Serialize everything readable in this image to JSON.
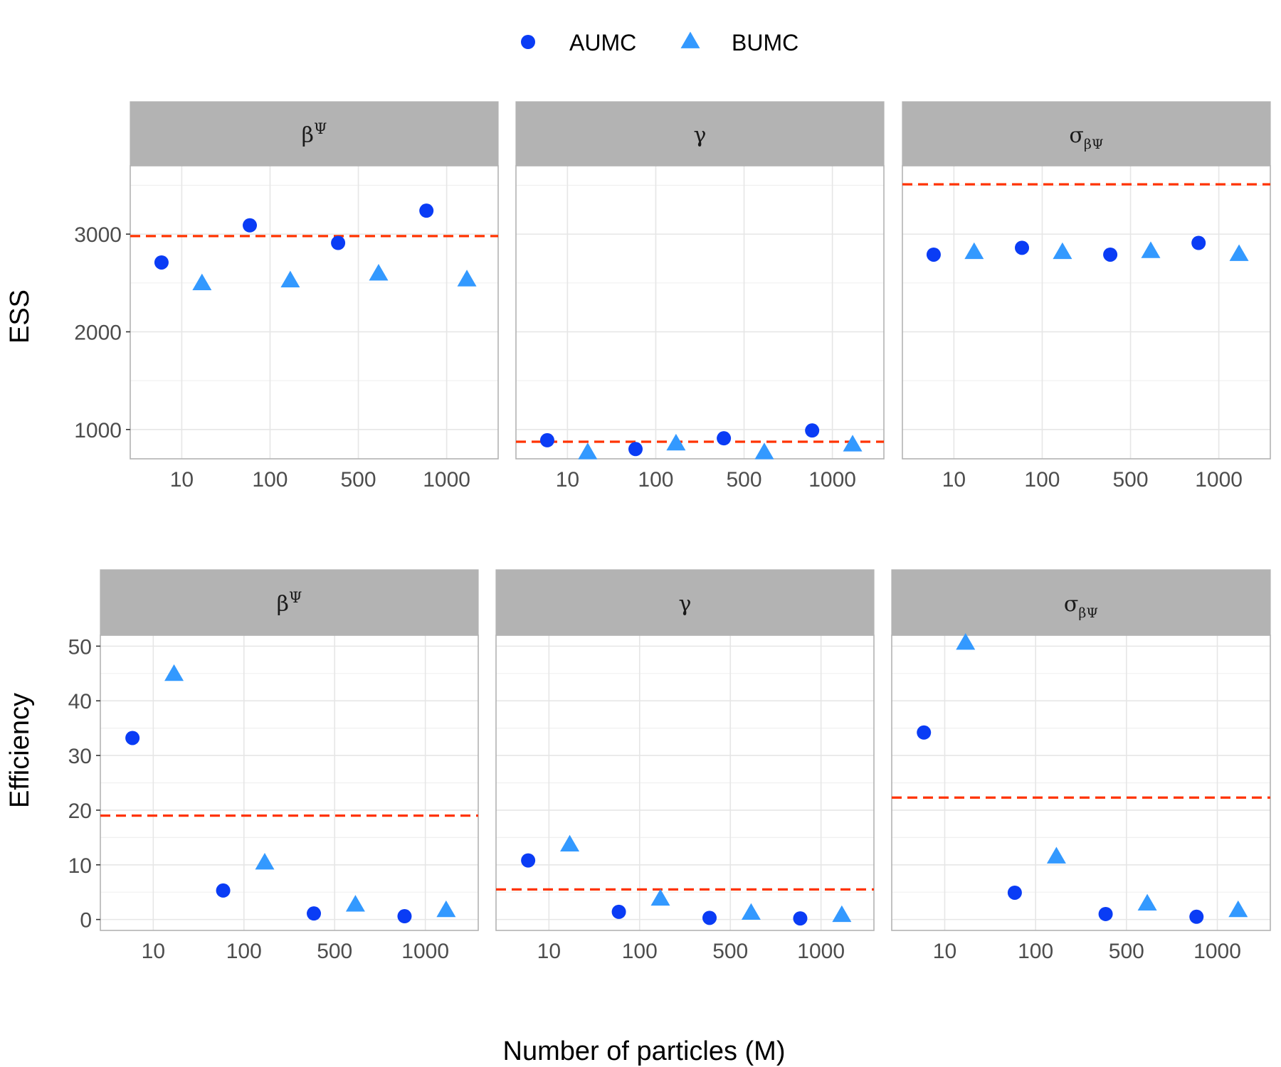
{
  "legend": [
    {
      "label": "AUMC",
      "shape": "circle",
      "color": "#0a3cf5"
    },
    {
      "label": "BUMC",
      "shape": "triangle",
      "color": "#3399ff"
    }
  ],
  "colors": {
    "reference_line": "#ff3300",
    "strip_bg": "#b3b3b3",
    "grid": "#e6e6e6",
    "panel_border": "#b3b3b3"
  },
  "axis_titles": {
    "x": "Number of particles (M)"
  },
  "chart_data": [
    {
      "type": "scatter",
      "row_label": "ESS",
      "categories": [
        "10",
        "100",
        "500",
        "1000"
      ],
      "ylim": [
        700,
        3700
      ],
      "yticks": [
        1000,
        2000,
        3000
      ],
      "panels": [
        {
          "strip": {
            "base": "β",
            "sup": "Ψ",
            "sub": ""
          },
          "series": [
            {
              "name": "AUMC",
              "values": [
                2710,
                3090,
                2910,
                3240
              ]
            },
            {
              "name": "BUMC",
              "values": [
                2490,
                2520,
                2590,
                2530
              ]
            }
          ],
          "reference": 2980
        },
        {
          "strip": {
            "base": "γ",
            "sup": "",
            "sub": ""
          },
          "series": [
            {
              "name": "AUMC",
              "values": [
                890,
                800,
                910,
                990
              ]
            },
            {
              "name": "BUMC",
              "values": [
                760,
                850,
                760,
                840
              ]
            }
          ],
          "reference": 875
        },
        {
          "strip": {
            "base": "σ",
            "sup": "",
            "sub": "βΨ"
          },
          "series": [
            {
              "name": "AUMC",
              "values": [
                2790,
                2860,
                2790,
                2910
              ]
            },
            {
              "name": "BUMC",
              "values": [
                2810,
                2810,
                2820,
                2790
              ]
            }
          ],
          "reference": 3510
        }
      ]
    },
    {
      "type": "scatter",
      "row_label": "Efficiency",
      "categories": [
        "10",
        "100",
        "500",
        "1000"
      ],
      "ylim": [
        -2,
        52
      ],
      "yticks": [
        0,
        10,
        20,
        30,
        40,
        50
      ],
      "panels": [
        {
          "strip": {
            "base": "β",
            "sup": "Ψ",
            "sub": ""
          },
          "series": [
            {
              "name": "AUMC",
              "values": [
                33.2,
                5.3,
                1.1,
                0.6
              ]
            },
            {
              "name": "BUMC",
              "values": [
                44.8,
                10.3,
                2.6,
                1.6
              ]
            }
          ],
          "reference": 19
        },
        {
          "strip": {
            "base": "γ",
            "sup": "",
            "sub": ""
          },
          "series": [
            {
              "name": "AUMC",
              "values": [
                10.8,
                1.4,
                0.3,
                0.2
              ]
            },
            {
              "name": "BUMC",
              "values": [
                13.6,
                3.7,
                1.1,
                0.7
              ]
            }
          ],
          "reference": 5.5
        },
        {
          "strip": {
            "base": "σ",
            "sup": "",
            "sub": "βΨ"
          },
          "series": [
            {
              "name": "AUMC",
              "values": [
                34.2,
                4.9,
                1.0,
                0.5
              ]
            },
            {
              "name": "BUMC",
              "values": [
                50.5,
                11.4,
                2.8,
                1.6
              ]
            }
          ],
          "reference": 22.3
        }
      ]
    }
  ]
}
